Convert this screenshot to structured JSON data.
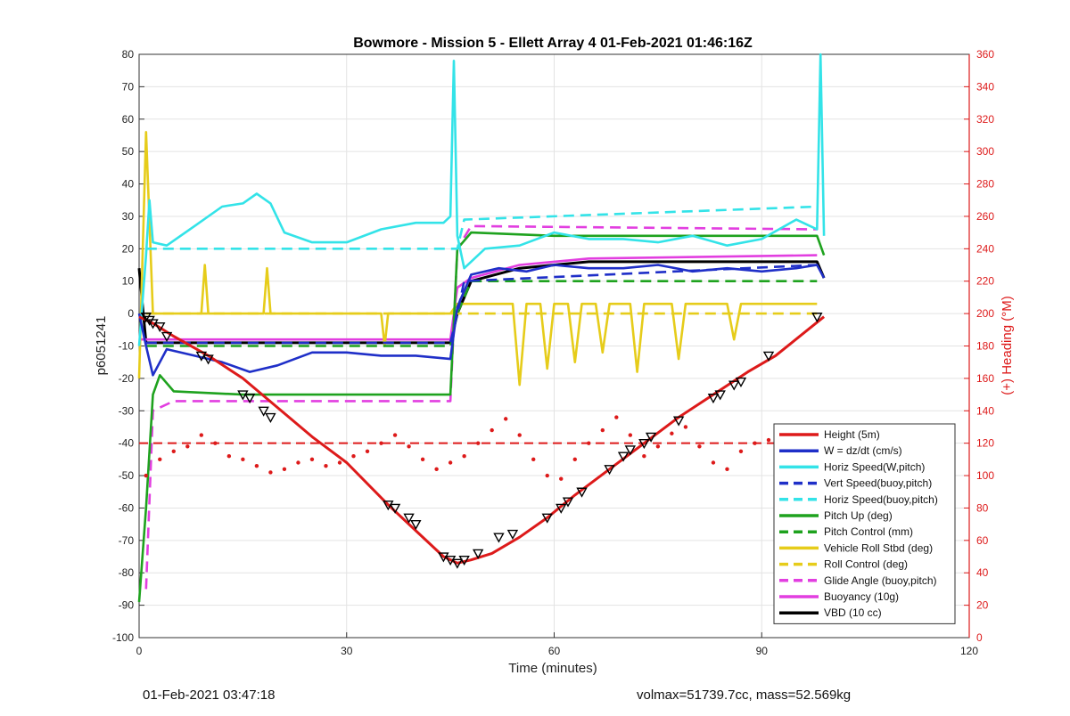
{
  "chart_data": {
    "type": "line",
    "title": "Bowmore - Mission 5 - Ellett Array 4 01-Feb-2021 01:46:16Z",
    "xlabel": "Time (minutes)",
    "ylabel": "p6051241",
    "y2label": "(+) Heading (°M)",
    "xlim": [
      0,
      120
    ],
    "ylim": [
      -100,
      80
    ],
    "y2lim": [
      0,
      360
    ],
    "xticks": [
      "0",
      "30",
      "60",
      "90",
      "120"
    ],
    "yticks": [
      "80",
      "70",
      "60",
      "50",
      "40",
      "30",
      "20",
      "10",
      "0",
      "-10",
      "-20",
      "-30",
      "-40",
      "-50",
      "-60",
      "-70",
      "-80",
      "-90",
      "-100"
    ],
    "y2ticks": [
      "360",
      "340",
      "320",
      "300",
      "280",
      "260",
      "240",
      "220",
      "200",
      "180",
      "160",
      "140",
      "120",
      "100",
      "80",
      "60",
      "40",
      "20",
      "0"
    ],
    "grid": true,
    "legend_position": "bottom-right",
    "series": [
      {
        "name": "Height (5m)",
        "color": "#dd1a1a",
        "style": "solid",
        "x": [
          0,
          2,
          5,
          10,
          15,
          20,
          25,
          30,
          36,
          40,
          44,
          46,
          48,
          51,
          55,
          59,
          63,
          68,
          73,
          78,
          83,
          88,
          92,
          99
        ],
        "y": [
          -1,
          -3,
          -7,
          -13,
          -20,
          -29,
          -38,
          -46,
          -59,
          -67,
          -75,
          -77,
          -76,
          -74,
          -69,
          -63,
          -56,
          -48,
          -40,
          -32,
          -25,
          -18,
          -13,
          -1
        ]
      },
      {
        "name": "W = dz/dt (cm/s)",
        "color": "#1f2fc8",
        "style": "solid",
        "x": [
          0,
          1,
          2,
          4,
          8,
          12,
          16,
          20,
          25,
          30,
          35,
          40,
          45,
          46,
          48,
          52,
          56,
          60,
          65,
          70,
          75,
          80,
          85,
          90,
          95,
          98,
          99
        ],
        "y": [
          0,
          -10,
          -19,
          -11,
          -13,
          -15,
          -18,
          -16,
          -12,
          -12,
          -13,
          -13,
          -14,
          2,
          12,
          14,
          13,
          15,
          14,
          14,
          15,
          13,
          14,
          13,
          14,
          15,
          11
        ]
      },
      {
        "name": "Horiz Speed(W,pitch)",
        "color": "#33e3e8",
        "style": "solid",
        "x": [
          0,
          1,
          1.5,
          2,
          4,
          8,
          12,
          15,
          17,
          19,
          21,
          25,
          30,
          35,
          40,
          44,
          45,
          45.5,
          46,
          47,
          50,
          55,
          60,
          65,
          70,
          75,
          80,
          85,
          90,
          95,
          98,
          98.5,
          99
        ],
        "y": [
          -10,
          18,
          35,
          22,
          21,
          27,
          33,
          34,
          37,
          34,
          25,
          22,
          22,
          26,
          28,
          28,
          30,
          78,
          24,
          14,
          20,
          21,
          25,
          23,
          23,
          22,
          24,
          21,
          23,
          29,
          26,
          80,
          24
        ]
      },
      {
        "name": "Vert Speed(buoy,pitch)",
        "color": "#1f2fc8",
        "style": "dashed",
        "x": [
          1,
          45,
          46,
          47,
          98
        ],
        "y": [
          -9,
          -9,
          0,
          10,
          15
        ]
      },
      {
        "name": "Horiz Speed(buoy,pitch)",
        "color": "#33e3e8",
        "style": "dashed",
        "x": [
          1,
          45,
          46,
          47,
          98
        ],
        "y": [
          20,
          20,
          20,
          29,
          33
        ]
      },
      {
        "name": "Pitch Up (deg)",
        "color": "#1ea21e",
        "style": "solid",
        "x": [
          0,
          1,
          2,
          3,
          5,
          15,
          25,
          35,
          45,
          46,
          48,
          60,
          70,
          80,
          90,
          98,
          99
        ],
        "y": [
          -89,
          -60,
          -25,
          -19,
          -24,
          -25,
          -25,
          -25,
          -25,
          20,
          25,
          24,
          24,
          24,
          24,
          24,
          18
        ]
      },
      {
        "name": "Pitch Control (mm)",
        "color": "#1ea21e",
        "style": "dashed",
        "x": [
          1,
          45,
          46,
          48,
          98
        ],
        "y": [
          -10,
          -10,
          0,
          10,
          10
        ]
      },
      {
        "name": "Vehicle Roll Stbd (deg)",
        "color": "#e6cc1a",
        "style": "solid",
        "x": [
          0,
          1,
          2,
          4,
          9,
          9.5,
          10,
          18,
          18.5,
          19,
          35,
          35.5,
          36,
          44,
          45,
          46,
          48,
          54,
          55,
          56,
          58,
          59,
          60,
          62,
          63,
          64,
          66,
          67,
          68,
          71,
          72,
          73,
          77,
          78,
          79,
          85,
          86,
          87,
          98
        ],
        "y": [
          -20,
          56,
          0,
          0,
          0,
          15,
          0,
          0,
          14,
          0,
          0,
          -10,
          0,
          0,
          0,
          3,
          3,
          3,
          -22,
          3,
          3,
          -17,
          3,
          3,
          -15,
          3,
          3,
          -12,
          3,
          3,
          -18,
          3,
          3,
          -14,
          3,
          3,
          -8,
          3,
          3
        ]
      },
      {
        "name": "Roll Control (deg)",
        "color": "#e6cc1a",
        "style": "dashed",
        "x": [
          1,
          45,
          46,
          48,
          98
        ],
        "y": [
          0,
          0,
          0,
          0,
          0
        ]
      },
      {
        "name": "Glide Angle (buoy,pitch)",
        "color": "#e23ee0",
        "style": "dashed",
        "x": [
          1,
          2,
          5,
          45,
          46,
          48,
          98
        ],
        "y": [
          -85,
          -30,
          -27,
          -27,
          20,
          27,
          26
        ]
      },
      {
        "name": "Buoyancy (10g)",
        "color": "#e23ee0",
        "style": "solid",
        "x": [
          0,
          1,
          45,
          46,
          48,
          55,
          65,
          98
        ],
        "y": [
          -8,
          -8,
          -8,
          8,
          11,
          15,
          17,
          18
        ]
      },
      {
        "name": "VBD (10 cc)",
        "color": "#000000",
        "style": "solid",
        "x": [
          0,
          1,
          45,
          46,
          48,
          55,
          65,
          98,
          99
        ],
        "y": [
          14,
          -9,
          -9,
          0,
          10,
          14,
          16,
          16,
          11
        ]
      }
    ],
    "heading": {
      "color": "#dd1a1a",
      "style": "dotted",
      "mean": 120,
      "points": [
        [
          1,
          100
        ],
        [
          3,
          110
        ],
        [
          5,
          115
        ],
        [
          7,
          118
        ],
        [
          9,
          125
        ],
        [
          11,
          120
        ],
        [
          13,
          112
        ],
        [
          15,
          110
        ],
        [
          17,
          106
        ],
        [
          19,
          102
        ],
        [
          21,
          104
        ],
        [
          23,
          108
        ],
        [
          25,
          110
        ],
        [
          27,
          106
        ],
        [
          29,
          108
        ],
        [
          31,
          112
        ],
        [
          33,
          115
        ],
        [
          35,
          120
        ],
        [
          37,
          125
        ],
        [
          39,
          118
        ],
        [
          41,
          110
        ],
        [
          43,
          104
        ],
        [
          45,
          108
        ],
        [
          47,
          112
        ],
        [
          49,
          120
        ],
        [
          51,
          128
        ],
        [
          53,
          135
        ],
        [
          55,
          125
        ],
        [
          57,
          110
        ],
        [
          59,
          100
        ],
        [
          61,
          98
        ],
        [
          63,
          110
        ],
        [
          65,
          120
        ],
        [
          67,
          128
        ],
        [
          69,
          136
        ],
        [
          71,
          125
        ],
        [
          73,
          112
        ],
        [
          75,
          118
        ],
        [
          77,
          126
        ],
        [
          79,
          130
        ],
        [
          81,
          118
        ],
        [
          83,
          108
        ],
        [
          85,
          104
        ],
        [
          87,
          115
        ],
        [
          89,
          120
        ],
        [
          91,
          122
        ],
        [
          93,
          118
        ],
        [
          95,
          124
        ],
        [
          97,
          120
        ]
      ]
    },
    "markers": {
      "symbol": "triangle-down",
      "x": [
        1,
        1.5,
        2,
        3,
        4,
        9,
        10,
        15,
        16,
        18,
        19,
        36,
        37,
        39,
        40,
        44,
        45,
        46,
        47,
        49,
        52,
        54,
        59,
        61,
        62,
        64,
        68,
        70,
        71,
        73,
        74,
        78,
        83,
        84,
        86,
        87,
        91,
        98
      ],
      "y": [
        -1,
        -2,
        -3,
        -4,
        -7,
        -13,
        -14,
        -25,
        -26,
        -30,
        -32,
        -59,
        -60,
        -63,
        -65,
        -75,
        -76,
        -77,
        -76,
        -74,
        -69,
        -68,
        -63,
        -60,
        -58,
        -55,
        -48,
        -44,
        -42,
        -40,
        -38,
        -33,
        -26,
        -25,
        -22,
        -21,
        -13,
        -1
      ]
    }
  },
  "footer": {
    "left": "01-Feb-2021 03:47:18",
    "right": "volmax=51739.7cc, mass=52.569kg"
  }
}
